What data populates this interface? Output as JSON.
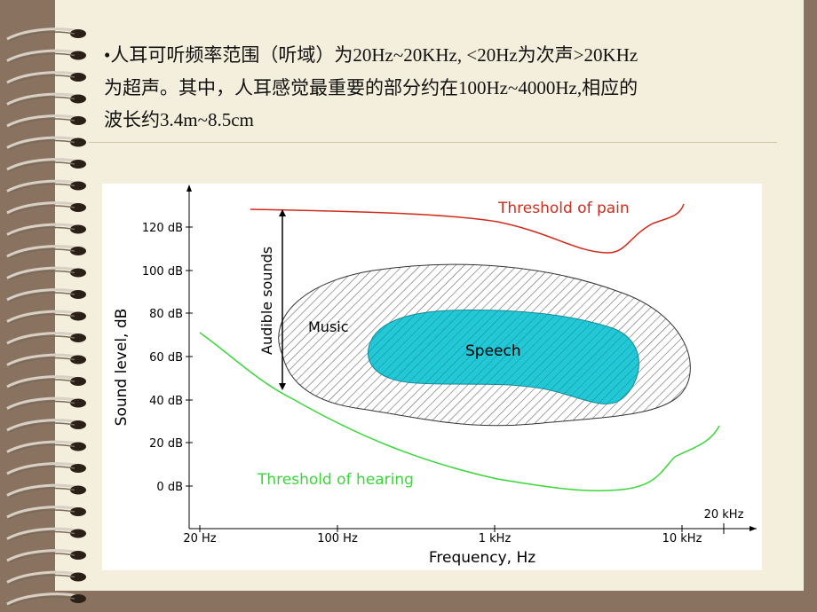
{
  "text": {
    "lines": [
      "•人耳可听频率范围（听域）为20Hz~20KHz, <20Hz为次声>20KHz",
      "为超声。其中，人耳感觉最重要的部分约在100Hz~4000Hz,相应的",
      "波长约3.4m~8.5cm"
    ]
  },
  "figure": {
    "y_axis_label": "Sound level, dB",
    "x_axis_label": "Frequency, Hz",
    "y_ticks": [
      "120 dB",
      "100 dB",
      "80 dB",
      "60 dB",
      "40 dB",
      "20 dB",
      "0 dB"
    ],
    "x_ticks": [
      "20 Hz",
      "100 Hz",
      "1 kHz",
      "10 kHz"
    ],
    "x_tick_extra": "20 kHz",
    "annotations": {
      "pain": "Threshold of pain",
      "hearing": "Threshold of hearing",
      "audible": "Audible sounds",
      "music": "Music",
      "speech": "Speech"
    }
  }
}
